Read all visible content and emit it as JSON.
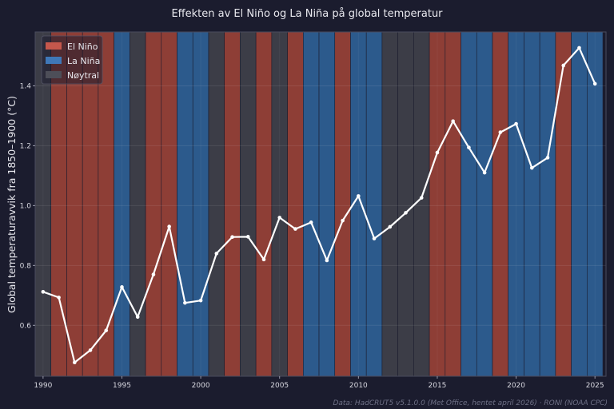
{
  "chart_data": {
    "type": "line",
    "title": "Effekten av El Niño og La Niña på global temperatur",
    "xlabel": "",
    "ylabel": "Global temperaturavvik fra 1850–1900 (°C)",
    "source": "Data: HadCRUT5 v5.1.0.0 (Met Office, hentet april 2026) · RONI (NOAA CPC)",
    "xlim": [
      1989.5,
      2025.7
    ],
    "ylim": [
      0.43,
      1.58
    ],
    "x_ticks": [
      1990,
      1995,
      2000,
      2005,
      2010,
      2015,
      2020,
      2025
    ],
    "y_ticks": [
      0.6,
      0.8,
      1.0,
      1.2,
      1.4
    ],
    "grid": true,
    "legend_position": "top-left",
    "phase_colors": {
      "El Niño": "#8e3e36",
      "La Niña": "#2c5a8c",
      "Nøytral": "#3c3d47"
    },
    "legend": [
      {
        "label": "El Niño",
        "color": "#c5574c"
      },
      {
        "label": "La Niña",
        "color": "#3f78b8"
      },
      {
        "label": "Nøytral",
        "color": "#4d4e58"
      }
    ],
    "line_color": "#ffffff",
    "years": [
      1990,
      1991,
      1992,
      1993,
      1994,
      1995,
      1996,
      1997,
      1998,
      1999,
      2000,
      2001,
      2002,
      2003,
      2004,
      2005,
      2006,
      2007,
      2008,
      2009,
      2010,
      2011,
      2012,
      2013,
      2014,
      2015,
      2016,
      2017,
      2018,
      2019,
      2020,
      2021,
      2022,
      2023,
      2024,
      2025
    ],
    "phases": [
      "Nøytral",
      "El Niño",
      "El Niño",
      "El Niño",
      "El Niño",
      "La Niña",
      "Nøytral",
      "El Niño",
      "El Niño",
      "La Niña",
      "La Niña",
      "Nøytral",
      "El Niño",
      "Nøytral",
      "El Niño",
      "Nøytral",
      "El Niño",
      "La Niña",
      "La Niña",
      "El Niño",
      "La Niña",
      "La Niña",
      "Nøytral",
      "Nøytral",
      "Nøytral",
      "El Niño",
      "El Niño",
      "La Niña",
      "La Niña",
      "El Niño",
      "La Niña",
      "La Niña",
      "La Niña",
      "El Niño",
      "La Niña",
      "La Niña"
    ],
    "values": [
      0.712,
      0.693,
      0.476,
      0.517,
      0.583,
      0.728,
      0.628,
      0.77,
      0.93,
      0.675,
      0.683,
      0.84,
      0.895,
      0.896,
      0.82,
      0.96,
      0.922,
      0.944,
      0.817,
      0.95,
      1.032,
      0.89,
      0.929,
      0.976,
      1.026,
      1.177,
      1.282,
      1.194,
      1.11,
      1.245,
      1.273,
      1.126,
      1.16,
      1.468,
      1.527,
      1.407
    ]
  }
}
